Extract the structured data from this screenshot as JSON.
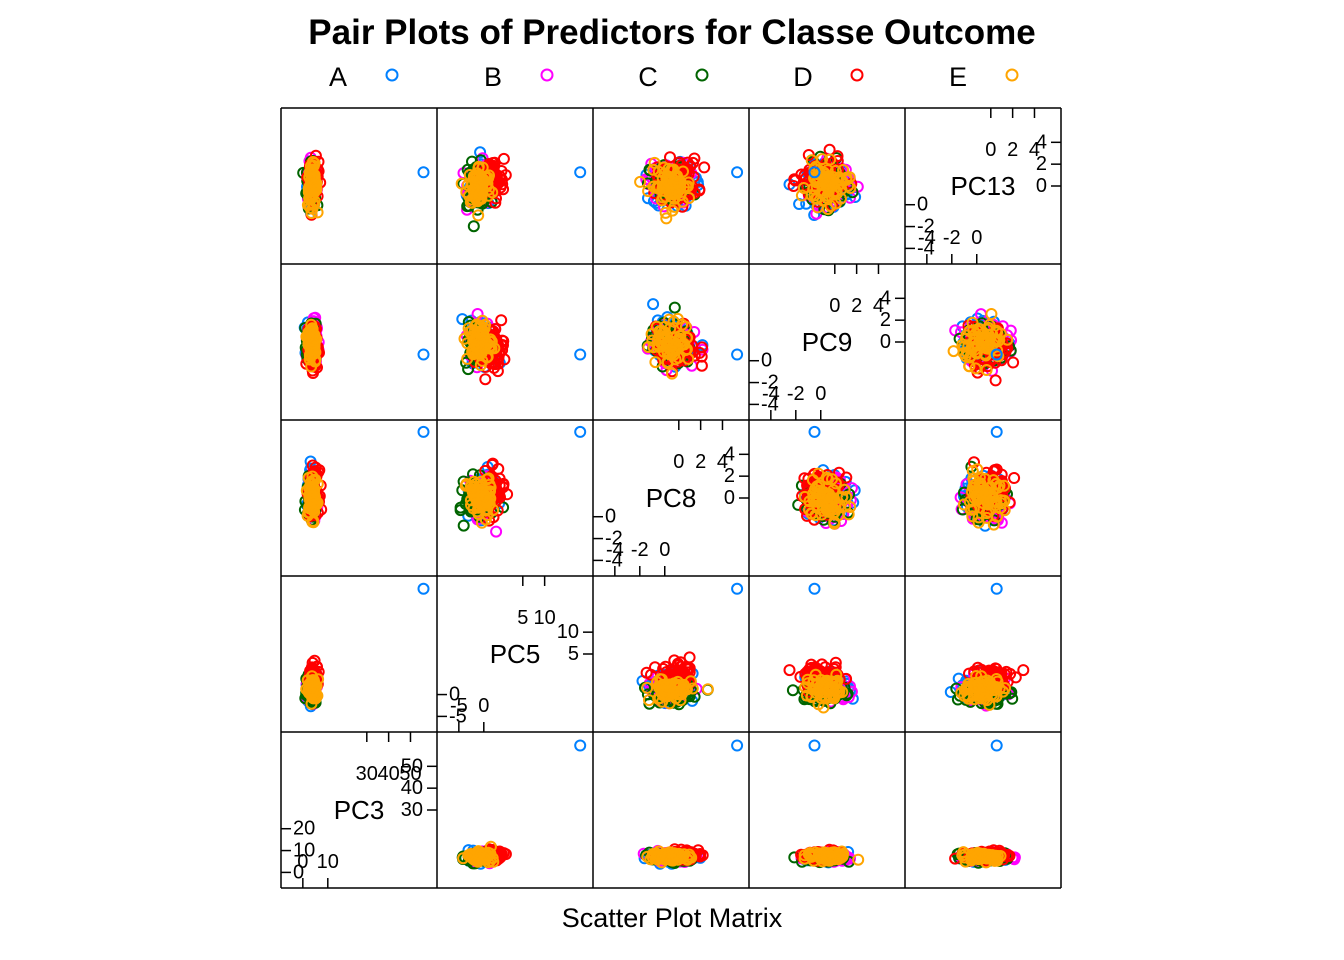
{
  "chart_data": {
    "type": "scatter",
    "subtype": "scatter-plot-matrix",
    "title": "Pair Plots of Predictors for Classe Outcome",
    "xlabel": "Scatter Plot Matrix",
    "legend": {
      "placement": "top",
      "entries": [
        {
          "name": "A",
          "color": "#0080ff"
        },
        {
          "name": "B",
          "color": "#ff00ff"
        },
        {
          "name": "C",
          "color": "#006400"
        },
        {
          "name": "D",
          "color": "#ff0000"
        },
        {
          "name": "E",
          "color": "#ffa500"
        }
      ]
    },
    "variables": [
      {
        "name": "PC3",
        "range": [
          -8,
          58
        ],
        "ticks_upper": [
          "30",
          "40",
          "50"
        ],
        "ticks_right": [
          "30",
          "40",
          "50"
        ],
        "ticks_lower": [
          "0",
          "10"
        ],
        "ticks_left": [
          "0",
          "10",
          "20"
        ]
      },
      {
        "name": "PC5",
        "range": [
          -6,
          14
        ],
        "ticks_upper": [
          "5",
          "10"
        ],
        "ticks_right": [
          "5",
          "10"
        ],
        "ticks_lower": [
          "-5",
          "0"
        ],
        "ticks_left": [
          "-5",
          "0"
        ]
      },
      {
        "name": "PC8",
        "range": [
          -5.5,
          5.5
        ],
        "ticks_upper": [
          "0",
          "2",
          "4"
        ],
        "ticks_right": [
          "0",
          "2",
          "4"
        ],
        "ticks_lower": [
          "-4",
          "-2",
          "0"
        ],
        "ticks_left": [
          "-4",
          "-2",
          "0"
        ]
      },
      {
        "name": "PC9",
        "range": [
          -5.5,
          5.5
        ],
        "ticks_upper": [
          "0",
          "2",
          "4"
        ],
        "ticks_right": [
          "0",
          "2",
          "4"
        ],
        "ticks_lower": [
          "-4",
          "-2",
          "0"
        ],
        "ticks_left": [
          "-4",
          "-2",
          "0"
        ]
      },
      {
        "name": "PC13",
        "range": [
          -5.5,
          5.5
        ],
        "ticks_upper": [
          "0",
          "2",
          "4"
        ],
        "ticks_right": [
          "0",
          "2",
          "4"
        ],
        "ticks_lower": [
          "-4",
          "-2",
          "0"
        ],
        "ticks_left": [
          "-4",
          "-2",
          "0"
        ]
      }
    ],
    "clusters": {
      "PC3": {
        "center": 2.5,
        "spread": 2.0
      },
      "PC5": {
        "center": -1.0,
        "spread": 1.6
      },
      "PC8": {
        "center": 0.0,
        "spread": 1.5
      },
      "PC9": {
        "center": 0.0,
        "spread": 1.5
      },
      "PC13": {
        "center": 0.0,
        "spread": 1.5
      }
    },
    "outliers": {
      "PC3": 56,
      "PC5": 13.5,
      "PC8": 5.3,
      "PC9": -1.0,
      "PC13": 1.1
    },
    "class_offsets": {
      "A": {
        "PC3": -0.3,
        "PC5": 0.3,
        "PC8": 0.2,
        "PC9": 0.1,
        "PC13": 0.0
      },
      "B": {
        "PC3": 0.0,
        "PC5": 0.0,
        "PC8": -0.2,
        "PC9": 0.2,
        "PC13": 0.2
      },
      "C": {
        "PC3": -0.5,
        "PC5": -0.5,
        "PC8": 0.0,
        "PC9": -0.2,
        "PC13": 0.1
      },
      "D": {
        "PC3": 0.8,
        "PC5": 1.6,
        "PC8": 0.5,
        "PC9": -0.5,
        "PC13": 0.5
      },
      "E": {
        "PC3": 0.1,
        "PC5": -0.2,
        "PC8": 0.0,
        "PC9": 0.0,
        "PC13": 0.0
      }
    }
  }
}
